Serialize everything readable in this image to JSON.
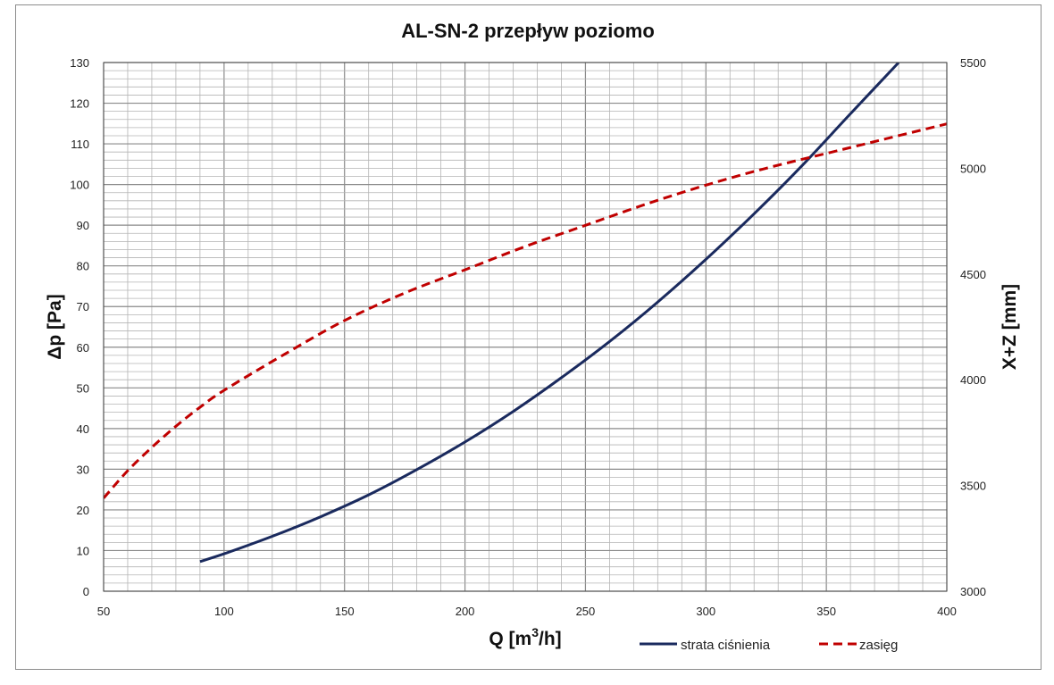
{
  "chart_data": {
    "type": "line",
    "title": "AL-SN-2 przepływ poziomo",
    "xlabel": "Q [m³/h]",
    "xlabel_main": "Q [m",
    "xlabel_sup": "3",
    "xlabel_tail": "/h]",
    "ylabel": "Δp [Pa]",
    "y2label": "X+Z [mm]",
    "xlim": [
      50,
      400
    ],
    "ylim": [
      0,
      130
    ],
    "y2lim": [
      3000,
      5500
    ],
    "x_ticks": [
      "50",
      "100",
      "150",
      "200",
      "250",
      "300",
      "350",
      "400"
    ],
    "y_ticks": [
      "0",
      "10",
      "20",
      "30",
      "40",
      "50",
      "60",
      "70",
      "80",
      "90",
      "100",
      "110",
      "120",
      "130"
    ],
    "y2_ticks": [
      "3000",
      "3500",
      "4000",
      "4500",
      "5000",
      "5500"
    ],
    "grid": true,
    "legend_position": "bottom-right",
    "series": [
      {
        "name": "strata ciśnienia",
        "axis": "left",
        "color": "#1a2a5e",
        "style": "solid",
        "x": [
          90,
          100,
          120,
          140,
          160,
          180,
          200,
          220,
          240,
          260,
          280,
          300,
          320,
          340,
          360,
          380
        ],
        "y": [
          7.3,
          9.2,
          13.5,
          18.3,
          23.7,
          29.9,
          36.7,
          44.2,
          52.5,
          61.4,
          71.1,
          81.6,
          92.8,
          104.7,
          117.4,
          130
        ]
      },
      {
        "name": "zasięg",
        "axis": "right",
        "color": "#c00000",
        "style": "dashed",
        "x": [
          50,
          60,
          70,
          80,
          90,
          100,
          125,
          150,
          175,
          200,
          225,
          250,
          275,
          300,
          325,
          350,
          375,
          400
        ],
        "y": [
          3440,
          3570,
          3680,
          3780,
          3870,
          3950,
          4120,
          4280,
          4410,
          4520,
          4630,
          4730,
          4830,
          4920,
          5000,
          5070,
          5140,
          5210
        ]
      }
    ]
  }
}
